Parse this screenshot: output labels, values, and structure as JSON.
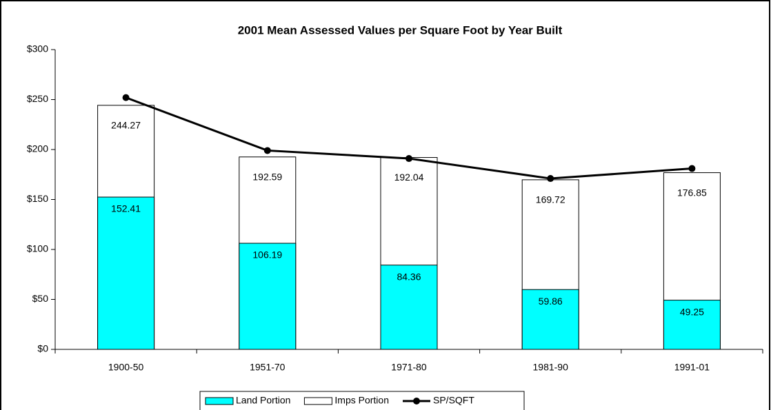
{
  "chart_data": {
    "type": "bar",
    "title": "2001 Mean Assessed Values per Square Foot by Year Built",
    "categories": [
      "1900-50",
      "1951-70",
      "1971-80",
      "1981-90",
      "1991-01"
    ],
    "series": [
      {
        "name": "Land Portion",
        "color": "#00ffff",
        "values": [
          152.41,
          106.19,
          84.36,
          59.86,
          49.25
        ]
      },
      {
        "name": "Imps Portion",
        "color": "#ffffff",
        "values": [
          244.27,
          192.59,
          192.04,
          169.72,
          176.85
        ]
      },
      {
        "name": "SP/SQFT",
        "type": "line",
        "color": "#000000",
        "values": [
          252,
          199,
          191,
          171,
          181
        ]
      }
    ],
    "ylim": [
      0,
      300
    ],
    "yticks": [
      {
        "value": 0,
        "label": "$0"
      },
      {
        "value": 50,
        "label": "$50"
      },
      {
        "value": 100,
        "label": "$100"
      },
      {
        "value": 150,
        "label": "$150"
      },
      {
        "value": 200,
        "label": "$200"
      },
      {
        "value": 250,
        "label": "$250"
      },
      {
        "value": 300,
        "label": "$300"
      }
    ],
    "legend": "bottom"
  }
}
